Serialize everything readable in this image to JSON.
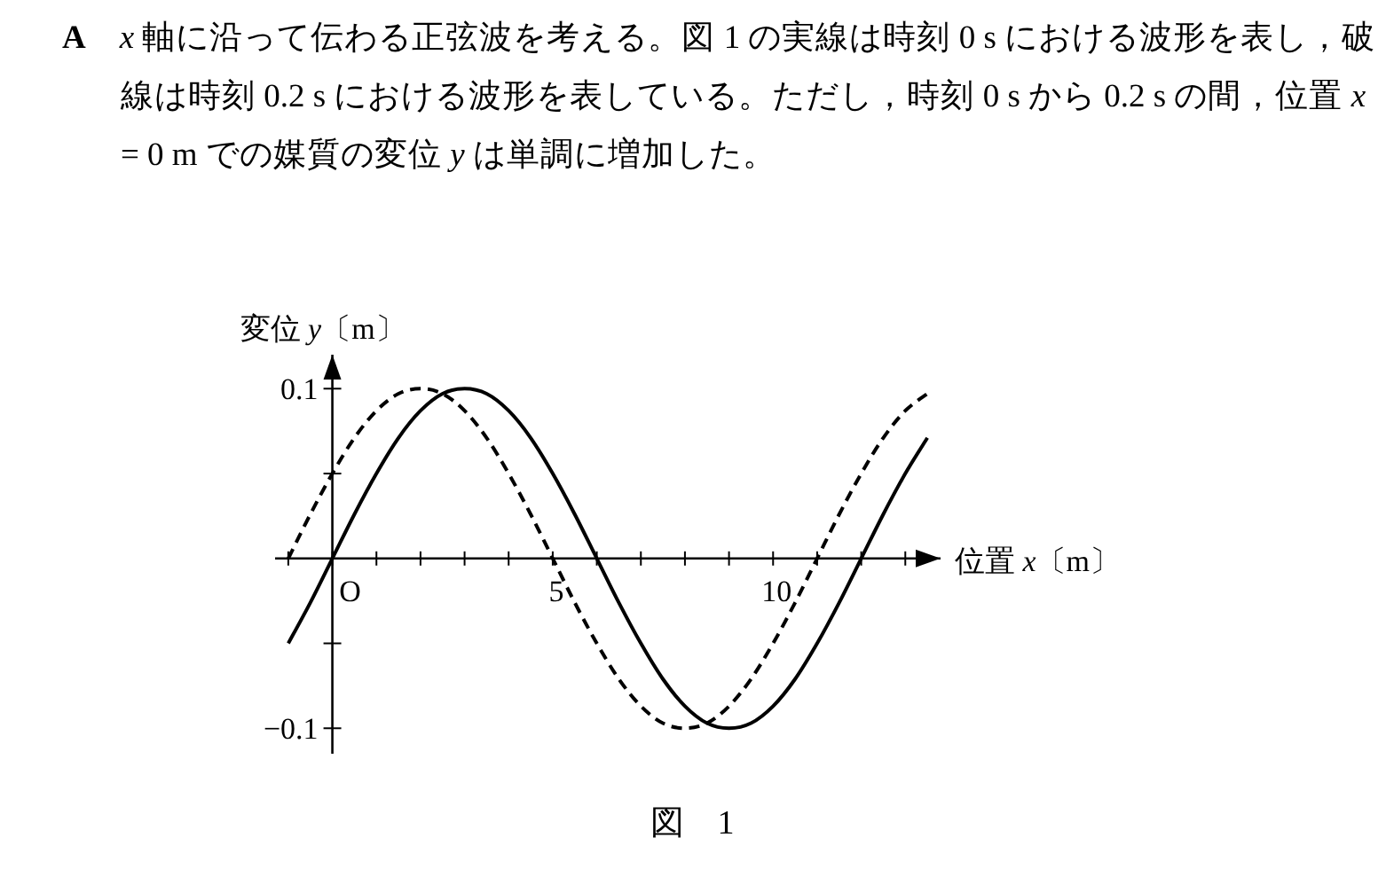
{
  "chart_data": {
    "type": "line",
    "title": "**A**　*x* 軸に沿って伝わる正弦波を考える。図 1 の実線は時刻 0 s における波形を表し，破線は時刻 0.2 s における波形を表している。ただし，時刻 0 s から 0.2 s の間，位置 *x* = 0 m での媒質の変位 *y* は単調に増加した。",
    "xlabel": "位置 *x*〔m〕",
    "ylabel": "変位 *y*〔m〕",
    "annotations": [
      "図　1"
    ],
    "xlim": [
      -1.3,
      13.8
    ],
    "ylim": [
      -0.115,
      0.12
    ],
    "xticks": [
      {
        "value": -1,
        "label": null
      },
      {
        "value": 0,
        "label": "O"
      },
      {
        "value": 1,
        "label": null
      },
      {
        "value": 2,
        "label": null
      },
      {
        "value": 3,
        "label": null
      },
      {
        "value": 4,
        "label": null
      },
      5,
      {
        "value": 6,
        "label": null
      },
      {
        "value": 7,
        "label": null
      },
      {
        "value": 8,
        "label": null
      },
      {
        "value": 9,
        "label": null
      },
      10,
      {
        "value": 11,
        "label": null
      },
      {
        "value": 12,
        "label": null
      },
      {
        "value": 13,
        "label": null
      }
    ],
    "yticks": [
      {
        "value": -0.1,
        "label": "−0.1"
      },
      {
        "value": -0.05,
        "label": null
      },
      {
        "value": 0.05,
        "label": null
      },
      0.1
    ],
    "x": [
      -1,
      -0.5,
      0,
      0.5,
      1,
      1.5,
      2,
      2.5,
      3,
      3.5,
      4,
      4.5,
      5,
      5.5,
      6,
      6.5,
      7,
      7.5,
      8,
      8.5,
      9,
      9.5,
      10,
      10.5,
      11,
      11.5,
      12,
      12.5,
      13,
      13.5
    ],
    "series": [
      {
        "color": "#000000",
        "line_style": "solid",
        "values": [
          -0.05,
          -0.026,
          0,
          0.026,
          0.05,
          0.071,
          0.087,
          0.097,
          0.1,
          0.097,
          0.087,
          0.071,
          0.05,
          0.026,
          0,
          -0.026,
          -0.05,
          -0.071,
          -0.087,
          -0.097,
          -0.1,
          -0.097,
          -0.087,
          -0.071,
          -0.05,
          -0.026,
          0,
          0.026,
          0.05,
          0.071
        ]
      },
      {
        "color": "#000000",
        "line_style": "dashed",
        "values": [
          0,
          0.026,
          0.05,
          0.071,
          0.087,
          0.097,
          0.1,
          0.097,
          0.087,
          0.071,
          0.05,
          0.026,
          0,
          -0.026,
          -0.05,
          -0.071,
          -0.087,
          -0.097,
          -0.1,
          -0.097,
          -0.087,
          -0.071,
          -0.05,
          -0.026,
          0,
          0.026,
          0.05,
          0.071,
          0.087,
          0.097
        ]
      }
    ]
  }
}
